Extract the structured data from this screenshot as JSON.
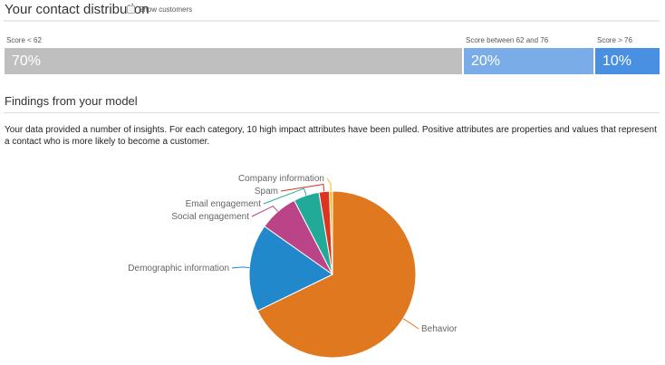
{
  "header": {
    "title": "Your contact distribution",
    "show_customers_label": "Show customers",
    "show_customers_checked": false
  },
  "distribution": [
    {
      "label": "Score < 62",
      "value": "70%",
      "percent": 70,
      "color": "#bfbfbf"
    },
    {
      "label": "Score between 62 and 76",
      "value": "20%",
      "percent": 20,
      "color": "#7aade8"
    },
    {
      "label": "Score > 76",
      "value": "10%",
      "percent": 10,
      "color": "#4a90e2"
    }
  ],
  "findings": {
    "title": "Findings from your model",
    "description": "Your data provided a number of insights. For each category, 10 high impact attributes have been pulled. Positive attributes are properties and values that represent a contact who is more likely to become a customer."
  },
  "chart_data": {
    "type": "pie",
    "slices": [
      {
        "name": "Behavior",
        "value": 67.8,
        "color": "#e07820"
      },
      {
        "name": "Demographic information",
        "value": 17,
        "color": "#2288cc"
      },
      {
        "name": "Social engagement",
        "value": 7.6,
        "color": "#bb4488"
      },
      {
        "name": "Email engagement",
        "value": 5,
        "color": "#22aa99"
      },
      {
        "name": "Spam",
        "value": 2,
        "color": "#dd3322"
      },
      {
        "name": "Company information",
        "value": 0.6,
        "color": "#eebb22"
      }
    ]
  }
}
